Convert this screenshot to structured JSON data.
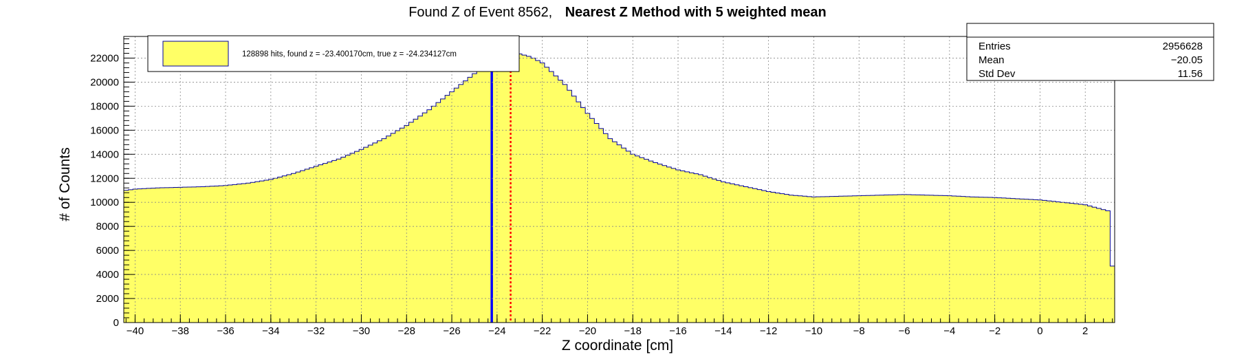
{
  "title": {
    "prefix": "Found Z of Event 8562,",
    "bold": "Nearest Z Method with 5 weighted mean"
  },
  "legend": {
    "entry": "128898 hits, found z = -23.400170cm, true z = -24.234127cm"
  },
  "stats": {
    "rows": [
      {
        "label": "Entries",
        "value": "2956628"
      },
      {
        "label": "Mean",
        "value": "−20.05"
      },
      {
        "label": "Std Dev",
        "value": "11.56"
      }
    ]
  },
  "colors": {
    "fill": "#ffff66",
    "outline": "#000099",
    "true_z_line": "#0000ff",
    "found_z_line": "#ff0000",
    "grid": "#888888"
  },
  "chart_data": {
    "type": "bar",
    "style": "histogram",
    "title": "Found Z of Event 8562, Nearest Z Method with 5 weighted mean",
    "xlabel": "Z coordinate [cm]",
    "ylabel": "# of Counts",
    "xlim": [
      -40.5,
      3.3
    ],
    "ylim": [
      0,
      23800
    ],
    "grid": true,
    "legend_position": "top-left",
    "x_ticks": [
      -40,
      -38,
      -36,
      -34,
      -32,
      -30,
      -28,
      -26,
      -24,
      -22,
      -20,
      -18,
      -16,
      -14,
      -12,
      -10,
      -8,
      -6,
      -4,
      -2,
      0,
      2
    ],
    "x_tick_labels": [
      "−40",
      "−38",
      "−36",
      "−34",
      "−32",
      "−30",
      "−28",
      "−26",
      "−24",
      "−22",
      "−20",
      "−18",
      "−16",
      "−14",
      "−12",
      "−10",
      "−8",
      "−6",
      "−4",
      "−2",
      "0",
      "2"
    ],
    "y_ticks": [
      0,
      2000,
      4000,
      6000,
      8000,
      10000,
      12000,
      14000,
      16000,
      18000,
      20000,
      22000
    ],
    "y_tick_labels": [
      "0",
      "2000",
      "4000",
      "6000",
      "8000",
      "10000",
      "12000",
      "14000",
      "16000",
      "18000",
      "20000",
      "22000"
    ],
    "bin_width": 0.2,
    "profile_points": [
      [
        -40.5,
        0
      ],
      [
        -40.4,
        11000
      ],
      [
        -40,
        11100
      ],
      [
        -39,
        11200
      ],
      [
        -38,
        11250
      ],
      [
        -37,
        11300
      ],
      [
        -36,
        11400
      ],
      [
        -35,
        11600
      ],
      [
        -34,
        11900
      ],
      [
        -33,
        12400
      ],
      [
        -32,
        13000
      ],
      [
        -31,
        13600
      ],
      [
        -30,
        14400
      ],
      [
        -29,
        15300
      ],
      [
        -28,
        16400
      ],
      [
        -27,
        17700
      ],
      [
        -26,
        19200
      ],
      [
        -25,
        20700
      ],
      [
        -24.5,
        21300
      ],
      [
        -24,
        21800
      ],
      [
        -23.5,
        22200
      ],
      [
        -23,
        22350
      ],
      [
        -22.5,
        22100
      ],
      [
        -22,
        21600
      ],
      [
        -21,
        19800
      ],
      [
        -20,
        17400
      ],
      [
        -19,
        15300
      ],
      [
        -18,
        14000
      ],
      [
        -17,
        13300
      ],
      [
        -16,
        12700
      ],
      [
        -15,
        12300
      ],
      [
        -14,
        11700
      ],
      [
        -13,
        11300
      ],
      [
        -12,
        10900
      ],
      [
        -11,
        10600
      ],
      [
        -10,
        10450
      ],
      [
        -9,
        10500
      ],
      [
        -8,
        10550
      ],
      [
        -7,
        10600
      ],
      [
        -6,
        10650
      ],
      [
        -5,
        10600
      ],
      [
        -4,
        10550
      ],
      [
        -3,
        10450
      ],
      [
        -2,
        10400
      ],
      [
        -1,
        10300
      ],
      [
        0,
        10200
      ],
      [
        1,
        10000
      ],
      [
        2,
        9800
      ],
      [
        2.6,
        9500
      ],
      [
        3.0,
        9300
      ],
      [
        3.1,
        4700
      ],
      [
        3.3,
        4700
      ]
    ],
    "annotations": [
      {
        "label": "true z",
        "x": -24.234127
      },
      {
        "label": "found z",
        "x": -23.40017
      }
    ]
  }
}
